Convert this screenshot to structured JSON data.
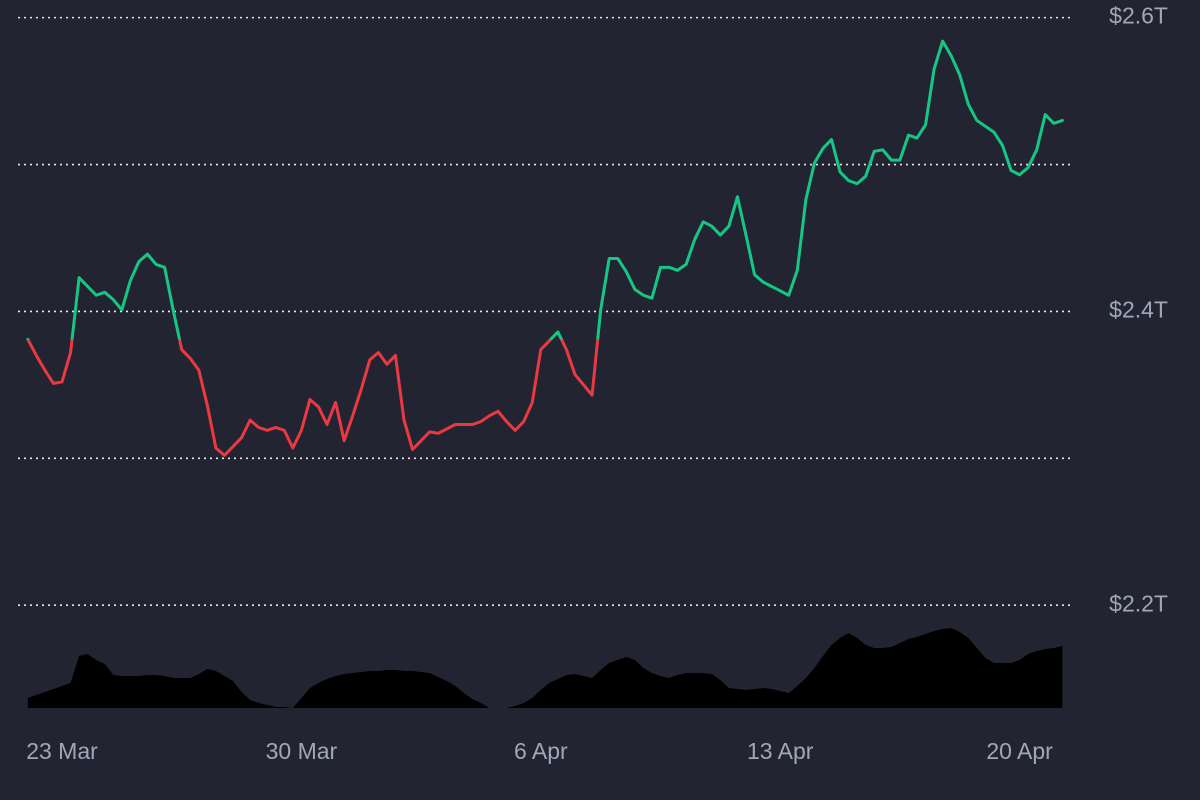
{
  "chart_data": {
    "type": "line",
    "categories": [
      null,
      null,
      null,
      null,
      "23 Mar",
      null,
      null,
      null,
      null,
      null,
      null,
      null,
      null,
      null,
      null,
      null,
      null,
      null,
      null,
      null,
      null,
      null,
      null,
      null,
      null,
      null,
      null,
      null,
      null,
      null,
      null,
      null,
      "30 Mar",
      null,
      null,
      null,
      null,
      null,
      null,
      null,
      null,
      null,
      null,
      null,
      null,
      null,
      null,
      null,
      null,
      null,
      null,
      null,
      null,
      null,
      null,
      null,
      null,
      null,
      null,
      null,
      "6 Apr",
      null,
      null,
      null,
      null,
      null,
      null,
      null,
      null,
      null,
      null,
      null,
      null,
      null,
      null,
      null,
      null,
      null,
      null,
      null,
      null,
      null,
      null,
      null,
      null,
      null,
      null,
      null,
      "13 Apr",
      null,
      null,
      null,
      null,
      null,
      null,
      null,
      null,
      null,
      null,
      null,
      null,
      null,
      null,
      null,
      null,
      null,
      null,
      null,
      null,
      null,
      null,
      null,
      null,
      null,
      null,
      null,
      "20 Apr",
      null,
      null,
      null,
      null,
      null
    ],
    "values": [
      2.381,
      2.37,
      2.36,
      2.351,
      2.352,
      2.372,
      2.423,
      2.417,
      2.411,
      2.413,
      2.408,
      2.401,
      2.421,
      2.434,
      2.439,
      2.432,
      2.43,
      2.401,
      2.374,
      2.368,
      2.36,
      2.336,
      2.307,
      2.302,
      2.308,
      2.314,
      2.326,
      2.321,
      2.319,
      2.321,
      2.319,
      2.307,
      2.319,
      2.34,
      2.335,
      2.323,
      2.338,
      2.312,
      2.329,
      2.347,
      2.367,
      2.372,
      2.364,
      2.37,
      2.326,
      2.306,
      2.312,
      2.318,
      2.317,
      2.32,
      2.323,
      2.323,
      2.323,
      2.325,
      2.329,
      2.332,
      2.325,
      2.319,
      2.325,
      2.338,
      2.374,
      2.38,
      2.386,
      2.374,
      2.357,
      2.35,
      2.343,
      2.401,
      2.436,
      2.436,
      2.427,
      2.415,
      2.411,
      2.409,
      2.43,
      2.43,
      2.428,
      2.432,
      2.449,
      2.461,
      2.458,
      2.452,
      2.458,
      2.478,
      2.452,
      2.425,
      2.42,
      2.417,
      2.414,
      2.411,
      2.428,
      2.476,
      2.501,
      2.511,
      2.517,
      2.495,
      2.489,
      2.487,
      2.492,
      2.509,
      2.51,
      2.503,
      2.503,
      2.52,
      2.518,
      2.527,
      2.565,
      2.584,
      2.574,
      2.561,
      2.541,
      2.53,
      2.526,
      2.522,
      2.513,
      2.496,
      2.493,
      2.498,
      2.51,
      2.534,
      2.528,
      2.53
    ],
    "up_color": "#16c784",
    "down_color": "#ea3943",
    "ylim": [
      2.13,
      2.612
    ],
    "yticks": [
      {
        "value": 2.6,
        "label": "$2.6T"
      },
      {
        "value": 2.4,
        "label": "$2.4T"
      },
      {
        "value": 2.2,
        "label": "$2.2T"
      }
    ],
    "grid_lines": [
      2.6,
      2.5,
      2.4,
      2.3,
      2.2
    ],
    "volume": [
      10,
      13,
      16,
      19,
      22,
      25,
      52,
      54,
      48,
      44,
      33,
      32,
      32,
      32,
      33,
      33,
      32,
      30,
      30,
      30,
      34,
      39,
      37,
      32,
      27,
      16,
      8,
      5,
      3,
      1,
      1,
      0,
      10,
      20,
      25,
      29,
      32,
      34,
      35,
      36,
      37,
      37,
      38,
      38,
      37,
      37,
      36,
      35,
      31,
      27,
      22,
      15,
      9,
      5,
      0,
      0,
      0,
      2,
      5,
      10,
      18,
      25,
      29,
      33,
      34,
      32,
      30,
      38,
      45,
      48,
      51,
      48,
      40,
      35,
      32,
      30,
      33,
      35,
      35,
      35,
      34,
      28,
      20,
      19,
      18,
      19,
      20,
      19,
      17,
      15,
      22,
      30,
      40,
      52,
      63,
      70,
      75,
      70,
      63,
      60,
      60,
      61,
      65,
      69,
      71,
      74,
      77,
      79,
      80,
      76,
      70,
      60,
      50,
      45,
      45,
      45,
      48,
      54,
      57,
      59,
      60,
      62
    ],
    "volume_ylim": [
      0,
      100
    ],
    "volume_color": "#000000"
  }
}
